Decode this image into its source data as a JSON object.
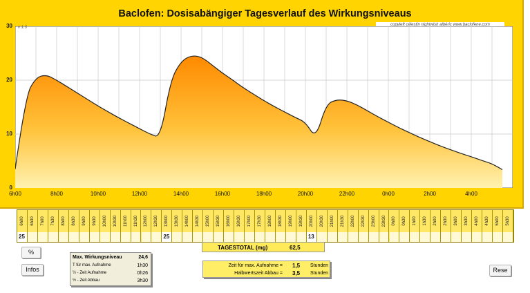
{
  "header": {
    "title": "Baclofen: Dosisabängiger Tagesverlauf des Wirkungsniveaus",
    "copyright": "copyleft  célestin  nightwish  albéric  www.baclofene.com",
    "version": "v 1.3"
  },
  "colors": {
    "background": "#ffd400",
    "curve_top": "#ff8a00",
    "curve_bottom": "#fff2b0"
  },
  "chart_data": {
    "type": "area",
    "xlabel": "",
    "ylabel": "",
    "ylim": [
      0,
      30
    ],
    "y_ticks": [
      "0",
      "10",
      "20",
      "30"
    ],
    "x_ticks": [
      "6h00",
      "8h00",
      "10h00",
      "12h00",
      "14h00",
      "16h00",
      "18h00",
      "20h00",
      "22h00",
      "0h00",
      "2h00",
      "4h00"
    ],
    "grid": true,
    "x_hours": [
      6,
      6.5,
      7,
      7.5,
      8,
      8.5,
      9,
      9.5,
      10,
      10.5,
      11,
      11.5,
      12,
      12.5,
      13,
      13.5,
      14,
      14.5,
      15,
      15.5,
      16,
      16.5,
      17,
      17.5,
      18,
      18.5,
      19,
      19.5,
      20,
      20.5,
      21,
      21.5,
      22,
      22.5,
      23,
      23.5,
      24,
      24.5,
      25,
      25.5,
      26,
      26.5,
      27,
      27.5,
      28,
      28.5,
      29,
      29.5
    ],
    "values": [
      3.5,
      17,
      20.5,
      21,
      20,
      18.8,
      17.6,
      16.4,
      15.2,
      14.1,
      13,
      12,
      11,
      10,
      9.3,
      20,
      23.5,
      24.6,
      24.3,
      22.8,
      21.3,
      20,
      18.6,
      17.4,
      16.2,
      15.1,
      14.1,
      13.1,
      12.2,
      9.2,
      15.5,
      16.4,
      16.2,
      15.4,
      14.3,
      13.2,
      12.2,
      11.2,
      10.3,
      9.4,
      8.6,
      7.8,
      7.1,
      6.4,
      5.8,
      5.1,
      4.5,
      3.4
    ]
  },
  "schedule": {
    "times": [
      "6h00",
      "6h30",
      "7h00",
      "7h30",
      "8h00",
      "8h30",
      "9h00",
      "9h30",
      "10h00",
      "10h30",
      "11h00",
      "11h30",
      "12h00",
      "12h30",
      "13h00",
      "13h30",
      "14h00",
      "14h30",
      "15h00",
      "15h30",
      "16h00",
      "16h30",
      "17h00",
      "17h30",
      "18h00",
      "18h30",
      "19h00",
      "19h30",
      "20h00",
      "20h30",
      "21h00",
      "21h30",
      "22h00",
      "22h30",
      "23h00",
      "23h30",
      "0h00",
      "0h30",
      "1h00",
      "1h30",
      "2h00",
      "2h30",
      "3h00",
      "3h30",
      "4h00",
      "4h30",
      "5h00",
      "5h30"
    ],
    "doses": [
      "25",
      "",
      "",
      "",
      "",
      "",
      "",
      "",
      "",
      "",
      "",
      "",
      "",
      "",
      "25",
      "",
      "",
      "",
      "",
      "",
      "",
      "",
      "",
      "",
      "",
      "",
      "",
      "",
      "13",
      "",
      "",
      "",
      "",
      "",
      "",
      "",
      "",
      "",
      "",
      "",
      "",
      "",
      "",
      "",
      "",
      "",
      "",
      ""
    ]
  },
  "total": {
    "label": "TAGESTOTAL (mg)",
    "value": "62,5"
  },
  "buttons": {
    "percent": "%",
    "infos": "Infos",
    "reset": "Rese"
  },
  "info": {
    "max_label": "Max. Wirkungsniveau",
    "max_value": "24,6",
    "rows": [
      {
        "label": "T für max. Aufnahme",
        "value": "1h30"
      },
      {
        "label": "½ - Zeit Aufnahme",
        "value": "0h26"
      },
      {
        "label": "½ - Zeit Abbau",
        "value": "3h30"
      }
    ]
  },
  "params": {
    "rows": [
      {
        "label": "Zeit für max. Aufnahme =",
        "value": "1,5",
        "unit": "Stunden"
      },
      {
        "label": "Halbwertszeit Abbau =",
        "value": "3,5",
        "unit": "Stunden"
      }
    ]
  }
}
